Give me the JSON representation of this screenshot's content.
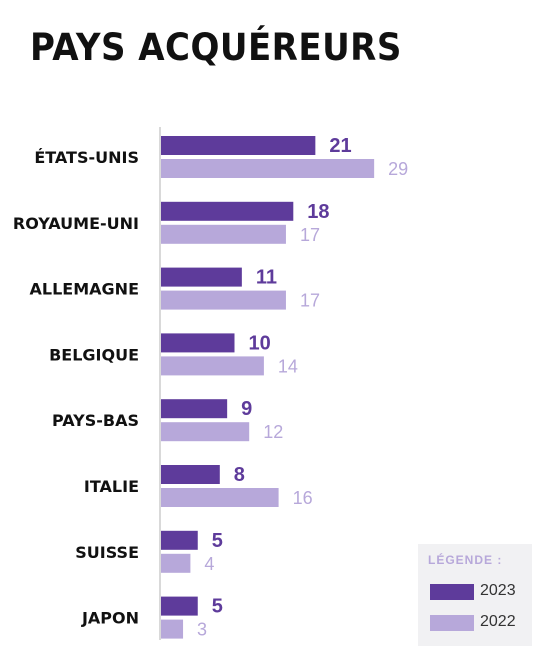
{
  "title": "PAYS ACQUÉREURS",
  "legend": {
    "title": "LÉGENDE :",
    "items": [
      {
        "label": "2023",
        "color": "#5e3b9b"
      },
      {
        "label": "2022",
        "color": "#b7a8da"
      }
    ]
  },
  "chart_data": {
    "type": "bar",
    "orientation": "horizontal",
    "title": "PAYS ACQUÉREURS",
    "categories": [
      "ÉTATS-UNIS",
      "ROYAUME-UNI",
      "ALLEMAGNE",
      "BELGIQUE",
      "PAYS-BAS",
      "ITALIE",
      "SUISSE",
      "JAPON"
    ],
    "series": [
      {
        "name": "2023",
        "color": "#5e3b9b",
        "values": [
          21,
          18,
          11,
          10,
          9,
          8,
          5,
          5
        ]
      },
      {
        "name": "2022",
        "color": "#b7a8da",
        "values": [
          29,
          17,
          17,
          14,
          12,
          16,
          4,
          3
        ]
      }
    ],
    "grid": false,
    "legend_position": "bottom-right"
  }
}
